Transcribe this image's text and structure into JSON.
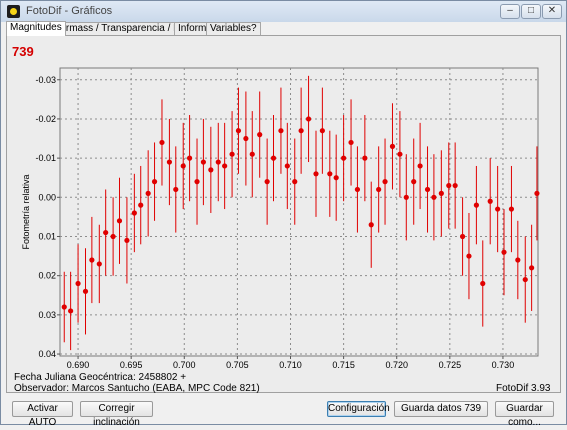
{
  "window": {
    "title": "FotoDif - Gráficos"
  },
  "tabs": [
    {
      "label": "Magnitudes"
    },
    {
      "label": "Airmass / Transparencia / FWHM / Fondo"
    },
    {
      "label": "Informe"
    },
    {
      "label": "Variables?"
    }
  ],
  "star_id": "739",
  "chart_data": {
    "type": "scatter",
    "ylabel": "Fotometría relativa",
    "xlabel": "",
    "x_ticks": [
      "0.690",
      "0.695",
      "0.700",
      "0.705",
      "0.710",
      "0.715",
      "0.720",
      "0.725",
      "0.730"
    ],
    "y_ticks": [
      "-0.03",
      "-0.02",
      "-0.01",
      "0.00",
      "0.01",
      "0.02",
      "0.03",
      "0.04"
    ],
    "xlim": [
      0.6883,
      0.7333
    ],
    "ylim": [
      -0.033,
      0.0405
    ],
    "y_inverted": true,
    "grid": true,
    "marker_color": "#e00000",
    "error_bar_color": "#e00000",
    "series": [
      {
        "x": [
          0.6887,
          0.6893,
          0.69,
          0.6907,
          0.6913,
          0.692,
          0.6926,
          0.6933,
          0.6939,
          0.6946,
          0.6953,
          0.6959,
          0.6966,
          0.6972,
          0.6979,
          0.6986,
          0.6992,
          0.6999,
          0.7005,
          0.7012,
          0.7018,
          0.7025,
          0.7032,
          0.7038,
          0.7045,
          0.7051,
          0.7058,
          0.7064,
          0.7071,
          0.7078,
          0.7084,
          0.7091,
          0.7097,
          0.7104,
          0.711,
          0.7117,
          0.7124,
          0.713,
          0.7137,
          0.7143,
          0.715,
          0.7157,
          0.7163,
          0.717,
          0.7176,
          0.7183,
          0.7189,
          0.7196,
          0.7203,
          0.7209,
          0.7216,
          0.7222,
          0.7229,
          0.7235,
          0.7242,
          0.7249,
          0.7255,
          0.7262,
          0.7268,
          0.7275,
          0.7281,
          0.7288,
          0.7295,
          0.7301,
          0.7308,
          0.7314,
          0.7321,
          0.7327,
          0.7332
        ],
        "y": [
          0.028,
          0.029,
          0.022,
          0.024,
          0.016,
          0.017,
          0.009,
          0.01,
          0.006,
          0.011,
          0.004,
          0.002,
          -0.001,
          -0.004,
          -0.014,
          -0.009,
          -0.002,
          -0.008,
          -0.01,
          -0.004,
          -0.009,
          -0.007,
          -0.009,
          -0.008,
          -0.011,
          -0.017,
          -0.015,
          -0.011,
          -0.016,
          -0.004,
          -0.01,
          -0.017,
          -0.008,
          -0.004,
          -0.017,
          -0.02,
          -0.006,
          -0.017,
          -0.006,
          -0.005,
          -0.01,
          -0.014,
          -0.002,
          -0.01,
          0.007,
          -0.002,
          -0.004,
          -0.013,
          -0.011,
          0.0,
          -0.004,
          -0.008,
          -0.002,
          0.0,
          -0.001,
          -0.003,
          -0.003,
          0.01,
          0.015,
          0.002,
          0.022,
          0.001,
          0.003,
          0.014,
          0.003,
          0.016,
          0.021,
          0.018,
          -0.001
        ],
        "error": [
          0.009,
          0.01,
          0.01,
          0.011,
          0.011,
          0.01,
          0.011,
          0.01,
          0.011,
          0.011,
          0.01,
          0.01,
          0.011,
          0.01,
          0.011,
          0.011,
          0.011,
          0.011,
          0.011,
          0.011,
          0.011,
          0.011,
          0.01,
          0.011,
          0.011,
          0.011,
          0.012,
          0.011,
          0.011,
          0.011,
          0.011,
          0.011,
          0.011,
          0.011,
          0.011,
          0.011,
          0.011,
          0.011,
          0.011,
          0.011,
          0.011,
          0.011,
          0.011,
          0.011,
          0.011,
          0.011,
          0.011,
          0.011,
          0.011,
          0.011,
          0.011,
          0.011,
          0.011,
          0.011,
          0.011,
          0.011,
          0.011,
          0.01,
          0.011,
          0.01,
          0.011,
          0.011,
          0.011,
          0.011,
          0.011,
          0.01,
          0.011,
          0.011,
          0.012
        ]
      }
    ]
  },
  "info": {
    "date_line": "Fecha Juliana Geocéntrica: 2458802 +",
    "observer_line": "Observador: Marcos Santucho (EABA, MPC Code 821)",
    "version": "FotoDif 3.93"
  },
  "buttons": {
    "activar_auto": "Activar AUTO",
    "corregir": "Corregir inclinación",
    "configuracion": "Configuración",
    "guarda_datos": "Guarda datos 739",
    "guardar_como": "Guardar como..."
  }
}
